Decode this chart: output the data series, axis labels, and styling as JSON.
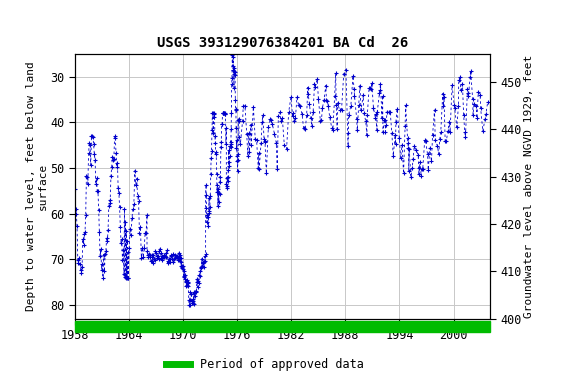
{
  "title": "USGS 393129076384201 BA Cd  26",
  "ylabel_left": "Depth to water level, feet below land\nsurface",
  "ylabel_right": "Groundwater level above NGVD 1929, feet",
  "xlim": [
    1958,
    2004
  ],
  "ylim_left": [
    83,
    25
  ],
  "ylim_right": [
    400,
    456
  ],
  "xticks": [
    1958,
    1964,
    1970,
    1976,
    1982,
    1988,
    1994,
    2000
  ],
  "yticks_left": [
    30,
    40,
    50,
    60,
    70,
    80
  ],
  "yticks_right": [
    400,
    410,
    420,
    430,
    440,
    450
  ],
  "background_color": "#ffffff",
  "plot_background": "#ffffff",
  "grid_color": "#c8c8c8",
  "line_color": "#0000cc",
  "legend_label": "Period of approved data",
  "legend_color": "#00bb00",
  "title_fontsize": 10,
  "axis_label_fontsize": 8,
  "tick_fontsize": 8.5
}
